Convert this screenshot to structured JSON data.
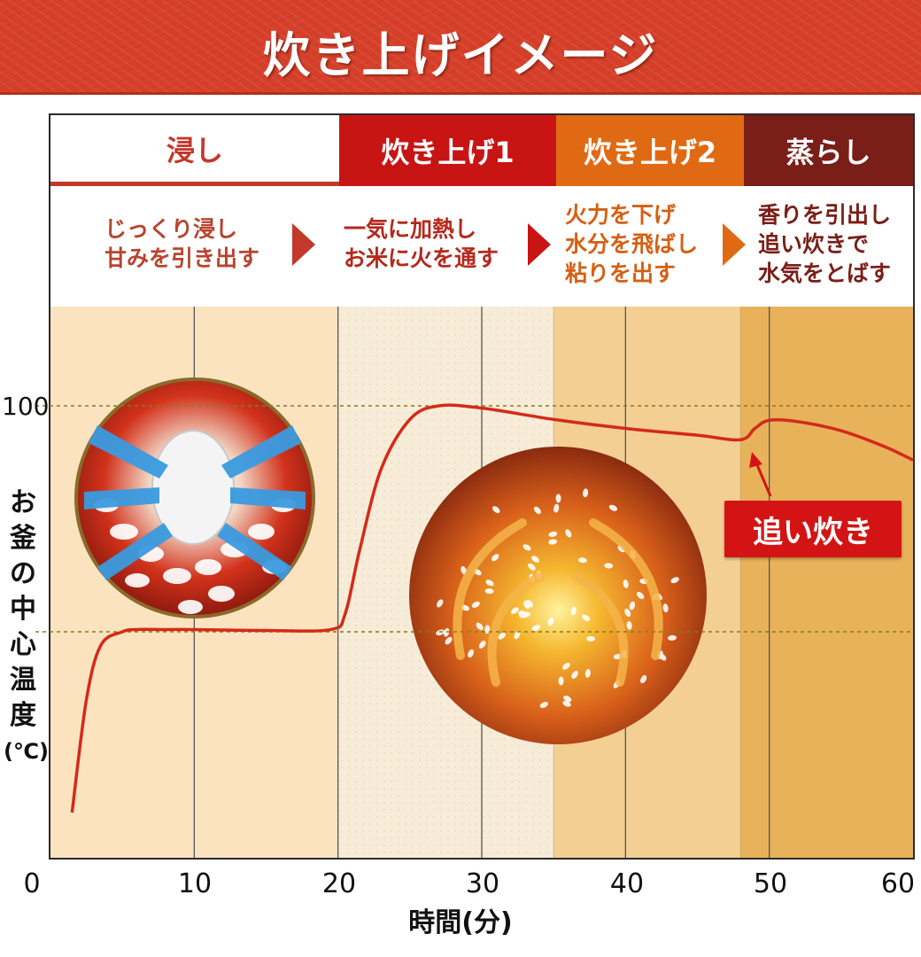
{
  "header": {
    "title": "炊き上げイメージ"
  },
  "phases": [
    {
      "label": "浸し",
      "lines": [
        "じっくり浸し",
        "甘みを引き出す"
      ]
    },
    {
      "label": "炊き上げ1",
      "lines": [
        "一気に加熱し",
        "お米に火を通す"
      ]
    },
    {
      "label": "炊き上げ2",
      "lines": [
        "火力を下げ",
        "水分を飛ばし",
        "粘りを出す"
      ]
    },
    {
      "label": "蒸らし",
      "lines": [
        "香りを引出し",
        "追い炊きで",
        "水気をとばす"
      ]
    }
  ],
  "annotations": {
    "reheat": "追い炊き"
  },
  "colors": {
    "banner": "#d6402a",
    "phase1_text": "#c4372a",
    "phase2": "#c91414",
    "phase3": "#e06a14",
    "phase4": "#7a1e18",
    "curve": "#d42a1a"
  },
  "chart_data": {
    "type": "line",
    "xlabel": "時間(分)",
    "ylabel": "お釜の中心温度(℃)",
    "x_ticks": [
      "0",
      "10",
      "20",
      "30",
      "40",
      "50",
      "60"
    ],
    "y_ticks": [
      "100"
    ],
    "xlim": [
      0,
      60
    ],
    "ylim": [
      0,
      100
    ],
    "y_axis_label_chars": [
      "お",
      "釜",
      "の",
      "中",
      "心",
      "温",
      "度",
      "(℃)"
    ],
    "series": [
      {
        "x": [
          1.5,
          2.5,
          3.5,
          5,
          6,
          8,
          10,
          15,
          19.5,
          20.5,
          21.5,
          23,
          25,
          27,
          30,
          35,
          40,
          45,
          48,
          49,
          50,
          52,
          55,
          58,
          60
        ],
        "y": [
          10,
          35,
          47,
          50,
          50.5,
          50.5,
          50.5,
          50.3,
          50.5,
          54,
          68,
          86,
          97,
          100,
          99.5,
          97,
          95,
          93.5,
          92.5,
          95,
          96.8,
          96.5,
          94.5,
          91,
          88
        ]
      }
    ],
    "phase_boundaries": [
      20,
      35,
      48
    ],
    "reference_lines": [
      100,
      50
    ],
    "grid": true
  }
}
